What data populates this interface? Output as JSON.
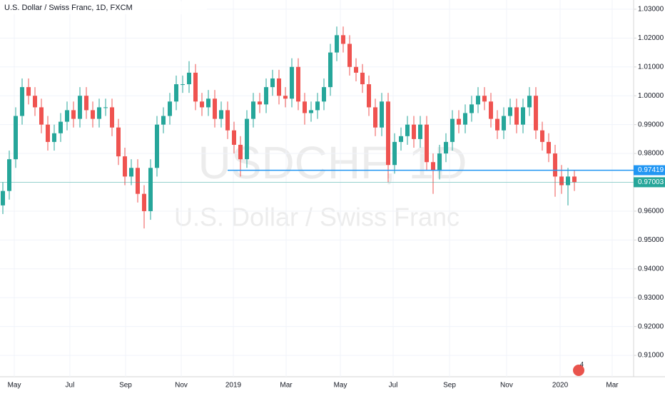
{
  "chart_data": {
    "type": "candlestick",
    "title": "U.S. Dollar / Swiss Franc, 1D, FXCM",
    "watermark": "USDCHF, 1D",
    "watermark_subtitle": "U.S. Dollar / Swiss Franc",
    "events_badge": "4",
    "up_color": "#26a69a",
    "down_color": "#ef5350",
    "open": [
      0.962,
      0.967,
      0.978,
      0.993,
      1.003,
      1.0,
      0.996,
      0.99,
      0.984,
      0.987,
      0.991,
      0.995,
      0.992,
      1.0,
      0.995,
      0.992,
      0.996,
      0.996,
      0.989,
      0.979,
      0.972,
      0.975,
      0.966,
      0.96,
      0.975,
      0.99,
      0.993,
      0.998,
      1.004,
      1.004,
      1.008,
      0.998,
      0.996,
      0.999,
      0.992,
      0.995,
      0.988,
      0.983,
      0.978,
      0.992,
      0.998,
      0.997,
      1.003,
      1.006,
      1.0,
      0.999,
      1.01,
      0.998,
      0.994,
      0.995,
      0.998,
      1.003,
      1.015,
      1.021,
      1.018,
      1.01,
      1.008,
      1.004,
      0.996,
      0.989,
      0.998,
      0.976,
      0.984,
      0.986,
      0.99,
      0.985,
      0.99,
      0.977,
      0.974,
      0.98,
      0.984,
      0.992,
      0.99,
      0.994,
      0.997,
      1.0,
      0.998,
      0.992,
      0.988,
      0.993,
      0.996,
      0.99,
      0.996,
      1.0,
      0.988,
      0.984,
      0.98,
      0.972,
      0.969,
      0.972
    ],
    "high": [
      0.97,
      0.981,
      0.996,
      1.006,
      1.006,
      1.003,
      0.999,
      0.993,
      0.99,
      0.994,
      0.998,
      0.998,
      1.003,
      1.003,
      0.998,
      0.999,
      0.999,
      0.999,
      0.992,
      0.982,
      0.978,
      0.978,
      0.969,
      0.978,
      0.993,
      0.996,
      1.001,
      1.007,
      1.007,
      1.012,
      1.011,
      1.001,
      1.002,
      1.002,
      0.998,
      0.998,
      0.991,
      0.986,
      0.995,
      1.001,
      1.001,
      1.006,
      1.009,
      1.009,
      1.003,
      1.013,
      1.013,
      1.001,
      0.998,
      1.001,
      1.006,
      1.018,
      1.024,
      1.024,
      1.021,
      1.013,
      1.011,
      1.007,
      0.999,
      1.001,
      1.001,
      0.987,
      0.989,
      0.993,
      0.993,
      0.993,
      0.993,
      0.98,
      0.983,
      0.987,
      0.995,
      0.995,
      0.997,
      1.0,
      1.003,
      1.003,
      1.001,
      0.995,
      0.996,
      0.999,
      0.999,
      0.999,
      1.003,
      1.003,
      0.991,
      0.987,
      0.983,
      0.976,
      0.975,
      0.974
    ],
    "low": [
      0.959,
      0.964,
      0.975,
      0.99,
      0.997,
      0.993,
      0.987,
      0.981,
      0.981,
      0.984,
      0.988,
      0.989,
      0.989,
      0.992,
      0.989,
      0.989,
      0.993,
      0.986,
      0.976,
      0.969,
      0.969,
      0.963,
      0.954,
      0.957,
      0.972,
      0.987,
      0.99,
      0.995,
      1.001,
      1.001,
      0.995,
      0.993,
      0.993,
      0.989,
      0.989,
      0.985,
      0.98,
      0.972,
      0.975,
      0.989,
      0.994,
      0.994,
      1.0,
      0.997,
      0.996,
      0.996,
      0.995,
      0.99,
      0.991,
      0.992,
      0.995,
      1.0,
      1.012,
      1.015,
      1.007,
      1.005,
      1.001,
      0.993,
      0.986,
      0.986,
      0.97,
      0.973,
      0.981,
      0.983,
      0.982,
      0.982,
      0.974,
      0.966,
      0.971,
      0.977,
      0.981,
      0.987,
      0.987,
      0.991,
      0.994,
      0.995,
      0.989,
      0.985,
      0.985,
      0.99,
      0.987,
      0.987,
      0.993,
      0.985,
      0.981,
      0.977,
      0.965,
      0.966,
      0.962,
      0.967
    ],
    "close": [
      0.967,
      0.978,
      0.993,
      1.003,
      1.0,
      0.996,
      0.99,
      0.984,
      0.987,
      0.991,
      0.995,
      0.992,
      1.0,
      0.995,
      0.992,
      0.996,
      0.996,
      0.989,
      0.979,
      0.972,
      0.975,
      0.966,
      0.96,
      0.975,
      0.99,
      0.993,
      0.998,
      1.004,
      1.004,
      1.008,
      0.998,
      0.996,
      0.999,
      0.992,
      0.995,
      0.988,
      0.983,
      0.978,
      0.992,
      0.998,
      0.997,
      1.003,
      1.006,
      1.0,
      0.999,
      1.01,
      0.998,
      0.994,
      0.995,
      0.998,
      1.003,
      1.015,
      1.021,
      1.018,
      1.01,
      1.008,
      1.004,
      0.996,
      0.989,
      0.998,
      0.976,
      0.984,
      0.986,
      0.99,
      0.985,
      0.99,
      0.977,
      0.974,
      0.98,
      0.984,
      0.992,
      0.99,
      0.994,
      0.997,
      1.0,
      0.998,
      0.992,
      0.988,
      0.993,
      0.996,
      0.99,
      0.996,
      1.0,
      0.988,
      0.984,
      0.98,
      0.972,
      0.969,
      0.972,
      0.97003
    ],
    "xlim": [
      -0.444,
      98.222
    ],
    "xticks": [
      {
        "value": 1.78,
        "label": "May"
      },
      {
        "value": 10.44,
        "label": "Jul"
      },
      {
        "value": 19.11,
        "label": "Sep"
      },
      {
        "value": 27.78,
        "label": "Nov"
      },
      {
        "value": 35.89,
        "label": "2019"
      },
      {
        "value": 44.11,
        "label": "Mar"
      },
      {
        "value": 52.56,
        "label": "May"
      },
      {
        "value": 60.78,
        "label": "Jul"
      },
      {
        "value": 69.56,
        "label": "Sep"
      },
      {
        "value": 78.44,
        "label": "Nov"
      },
      {
        "value": 86.78,
        "label": "2020"
      },
      {
        "value": 94.89,
        "label": "Mar"
      }
    ],
    "ylim": [
      0.9026,
      1.0332
    ],
    "yticks": [
      {
        "value": 1.03,
        "label": "1.03000"
      },
      {
        "value": 1.02,
        "label": "1.02000"
      },
      {
        "value": 1.01,
        "label": "1.01000"
      },
      {
        "value": 1.0,
        "label": "1.00000"
      },
      {
        "value": 0.99,
        "label": "0.99000"
      },
      {
        "value": 0.98,
        "label": "0.98000"
      },
      {
        "value": 0.97,
        "label": "0.97000"
      },
      {
        "value": 0.96,
        "label": "0.96000"
      },
      {
        "value": 0.95,
        "label": "0.95000"
      },
      {
        "value": 0.94,
        "label": "0.94000"
      },
      {
        "value": 0.93,
        "label": "0.93000"
      },
      {
        "value": 0.92,
        "label": "0.92000"
      },
      {
        "value": 0.91,
        "label": "0.91000"
      }
    ],
    "grid": true,
    "price_lines": [
      {
        "value": 0.97419,
        "label": "0.97419",
        "color": "#2196f3",
        "start": 35.0
      },
      {
        "value": 0.97003,
        "label": "0.97003",
        "color": "#26a69a",
        "start": -0.444
      }
    ]
  }
}
